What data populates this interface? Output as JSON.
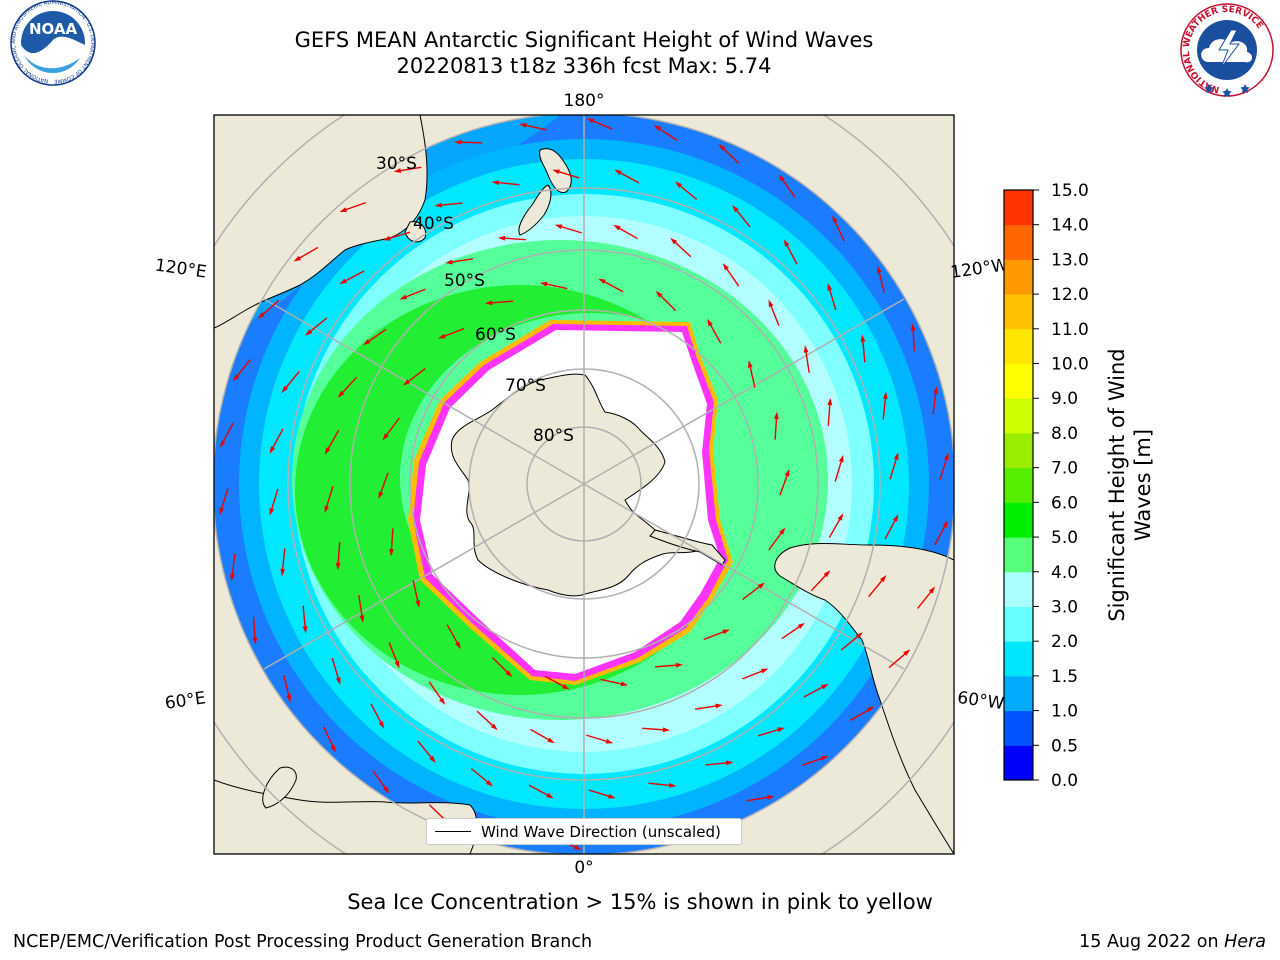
{
  "header": {
    "title": "GEFS MEAN Antarctic Significant Height of Wind Waves",
    "subtitle": "20220813 t18z 336h fcst   Max: 5.74"
  },
  "logos": {
    "noaa_text": "NOAA",
    "noaa_ring": "NATIONAL OCEANIC AND ATMOSPHERIC ADMINISTRATION · U.S. DEPARTMENT OF COMMERCE",
    "nws_ring": "NATIONAL WEATHER SERVICE"
  },
  "map": {
    "projection": "south-polar-stereographic",
    "longitude_labels": [
      "180°",
      "120°E",
      "120°W",
      "60°E",
      "60°W",
      "0°"
    ],
    "latitude_labels": [
      "30°S",
      "40°S",
      "50°S",
      "60°S",
      "70°S",
      "80°S"
    ],
    "colors": {
      "land": "#ede9d8",
      "ice_interior": "#ffffff",
      "ice_edge_inner": "#ff33ff",
      "ice_edge_outer": "#ffbb00",
      "graticule": "#b0b0b0",
      "arrow": "#ee0000"
    },
    "legend_label": "Wind Wave Direction (unscaled)"
  },
  "colorbar": {
    "label": "Significant Height of Wind Waves [m]",
    "ticks": [
      "0.0",
      "0.5",
      "1.0",
      "1.5",
      "2.0",
      "3.0",
      "4.0",
      "5.0",
      "6.0",
      "7.0",
      "8.0",
      "9.0",
      "10.0",
      "11.0",
      "12.0",
      "13.0",
      "14.0",
      "15.0"
    ],
    "colors": [
      "#0000ff",
      "#0055ff",
      "#00aaff",
      "#00e5ff",
      "#66ffff",
      "#aaffff",
      "#55ff77",
      "#00ee00",
      "#55ee00",
      "#99ee00",
      "#ccff00",
      "#ffff00",
      "#ffe600",
      "#ffc000",
      "#ff9900",
      "#ff6600",
      "#ff3300"
    ]
  },
  "caption": "Sea Ice Concentration > 15% is shown in pink to yellow",
  "footer": {
    "left": "NCEP/EMC/Verification Post Processing Product Generation Branch",
    "right_prefix": "15 Aug 2022 on ",
    "right_machine": "Hera"
  },
  "chart_data": {
    "type": "heatmap",
    "title": "GEFS MEAN Antarctic Significant Height of Wind Waves",
    "subtitle": "20220813 t18z 336h fcst   Max: 5.74",
    "units": "m",
    "colorbar_label": "Significant Height of Wind Waves [m]",
    "colorbar_range": [
      0,
      15
    ],
    "max_value": 5.74,
    "annotation": "Sea Ice Concentration > 15% is shown in pink to yellow"
  }
}
